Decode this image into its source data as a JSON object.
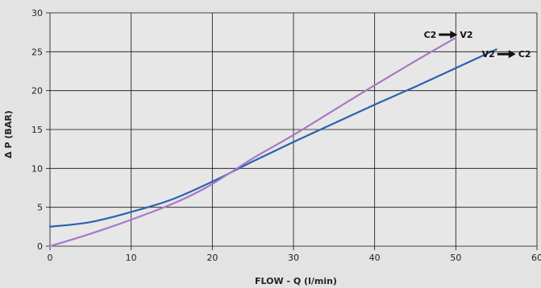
{
  "chart_data": {
    "type": "line",
    "xlabel": "FLOW - Q (l/min)",
    "ylabel": "Δ P (BAR)",
    "xlim": [
      0,
      60
    ],
    "ylim": [
      0,
      30
    ],
    "x_ticks": [
      0,
      10,
      20,
      30,
      40,
      50,
      60
    ],
    "y_ticks": [
      0,
      5,
      10,
      15,
      20,
      25,
      30
    ],
    "x_tick_labels": [
      "0",
      "10",
      "20",
      "30",
      "40",
      "50",
      "60"
    ],
    "y_tick_labels": [
      "0",
      "5",
      "10",
      "15",
      "20",
      "25",
      "30"
    ],
    "grid": true,
    "background_color": "#e3e3e4",
    "plot_background_color": "#e7e7e8",
    "grid_color": "#111111",
    "series": [
      {
        "color": "#2a62b0",
        "points": [
          [
            0,
            2.5
          ],
          [
            5,
            3.1
          ],
          [
            10,
            4.4
          ],
          [
            15,
            6.0
          ],
          [
            20,
            8.3
          ],
          [
            25,
            10.9
          ],
          [
            30,
            13.4
          ],
          [
            35,
            15.8
          ],
          [
            40,
            18.2
          ],
          [
            45,
            20.5
          ],
          [
            50,
            22.9
          ],
          [
            55,
            25.3
          ]
        ]
      },
      {
        "color": "#a878c4",
        "points": [
          [
            0,
            0.0
          ],
          [
            5,
            1.6
          ],
          [
            10,
            3.4
          ],
          [
            15,
            5.4
          ],
          [
            19,
            7.4
          ],
          [
            22,
            9.3
          ],
          [
            25,
            11.3
          ],
          [
            30,
            14.3
          ],
          [
            35,
            17.5
          ],
          [
            40,
            20.7
          ],
          [
            45,
            23.8
          ],
          [
            50,
            26.8
          ]
        ]
      }
    ],
    "annotations": [
      {
        "text_from": "C2",
        "text_to": "V2",
        "at_x": 50,
        "at_y": 27.2
      },
      {
        "text_from": "V2",
        "text_to": "C2",
        "at_x": 57.2,
        "at_y": 24.7
      }
    ]
  }
}
